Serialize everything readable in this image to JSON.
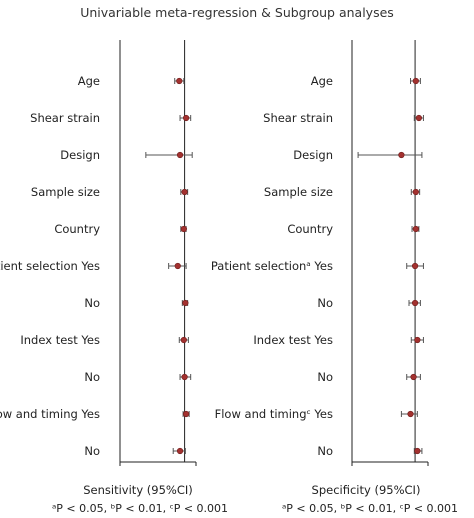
{
  "title": "Univariable meta-regression & Subgroup analyses",
  "chart_data": [
    {
      "type": "forest",
      "xlabel": "Sensitivity (95%CI)",
      "footnote": "ᵃP < 0.05, ᵇP < 0.01, ᶜP < 0.001",
      "xlim": [
        0,
        1
      ],
      "reference_line": 0.85,
      "rows": [
        {
          "label": "Age",
          "point": 0.78,
          "low": 0.72,
          "high": 0.84
        },
        {
          "label": "Shear strain",
          "point": 0.87,
          "low": 0.79,
          "high": 0.93
        },
        {
          "label": "Design",
          "point": 0.79,
          "low": 0.34,
          "high": 0.95
        },
        {
          "label": "Sample size",
          "point": 0.85,
          "low": 0.8,
          "high": 0.89
        },
        {
          "label": "Country",
          "point": 0.84,
          "low": 0.8,
          "high": 0.87
        },
        {
          "label": "Patient selection Yes",
          "point": 0.76,
          "low": 0.64,
          "high": 0.87
        },
        {
          "label": "No",
          "point": 0.86,
          "low": 0.82,
          "high": 0.89
        },
        {
          "label": "Index test Yes",
          "point": 0.84,
          "low": 0.78,
          "high": 0.9
        },
        {
          "label": "No",
          "point": 0.85,
          "low": 0.79,
          "high": 0.93
        },
        {
          "label": "Flow and timing Yes",
          "point": 0.87,
          "low": 0.83,
          "high": 0.91
        },
        {
          "label": "No",
          "point": 0.79,
          "low": 0.7,
          "high": 0.86
        }
      ]
    },
    {
      "type": "forest",
      "xlabel": "Specificity (95%CI)",
      "footnote": "ᵃP < 0.05, ᵇP < 0.01, ᶜP < 0.001",
      "xlim": [
        0,
        1
      ],
      "reference_line": 0.83,
      "rows": [
        {
          "label": "Age",
          "point": 0.84,
          "low": 0.77,
          "high": 0.9
        },
        {
          "label": "Shear strain",
          "point": 0.88,
          "low": 0.82,
          "high": 0.94
        },
        {
          "label": "Design",
          "point": 0.65,
          "low": 0.08,
          "high": 0.92
        },
        {
          "label": "Sample size",
          "point": 0.84,
          "low": 0.78,
          "high": 0.89
        },
        {
          "label": "Country",
          "point": 0.84,
          "low": 0.79,
          "high": 0.88
        },
        {
          "label": "Patient selectionᵃ Yes",
          "point": 0.83,
          "low": 0.72,
          "high": 0.94
        },
        {
          "label": "No",
          "point": 0.83,
          "low": 0.75,
          "high": 0.9
        },
        {
          "label": "Index test Yes",
          "point": 0.86,
          "low": 0.78,
          "high": 0.94
        },
        {
          "label": "No",
          "point": 0.81,
          "low": 0.72,
          "high": 0.9
        },
        {
          "label": "Flow and timingᶜ Yes",
          "point": 0.77,
          "low": 0.65,
          "high": 0.86
        },
        {
          "label": "No",
          "point": 0.86,
          "low": 0.82,
          "high": 0.92
        }
      ]
    }
  ]
}
